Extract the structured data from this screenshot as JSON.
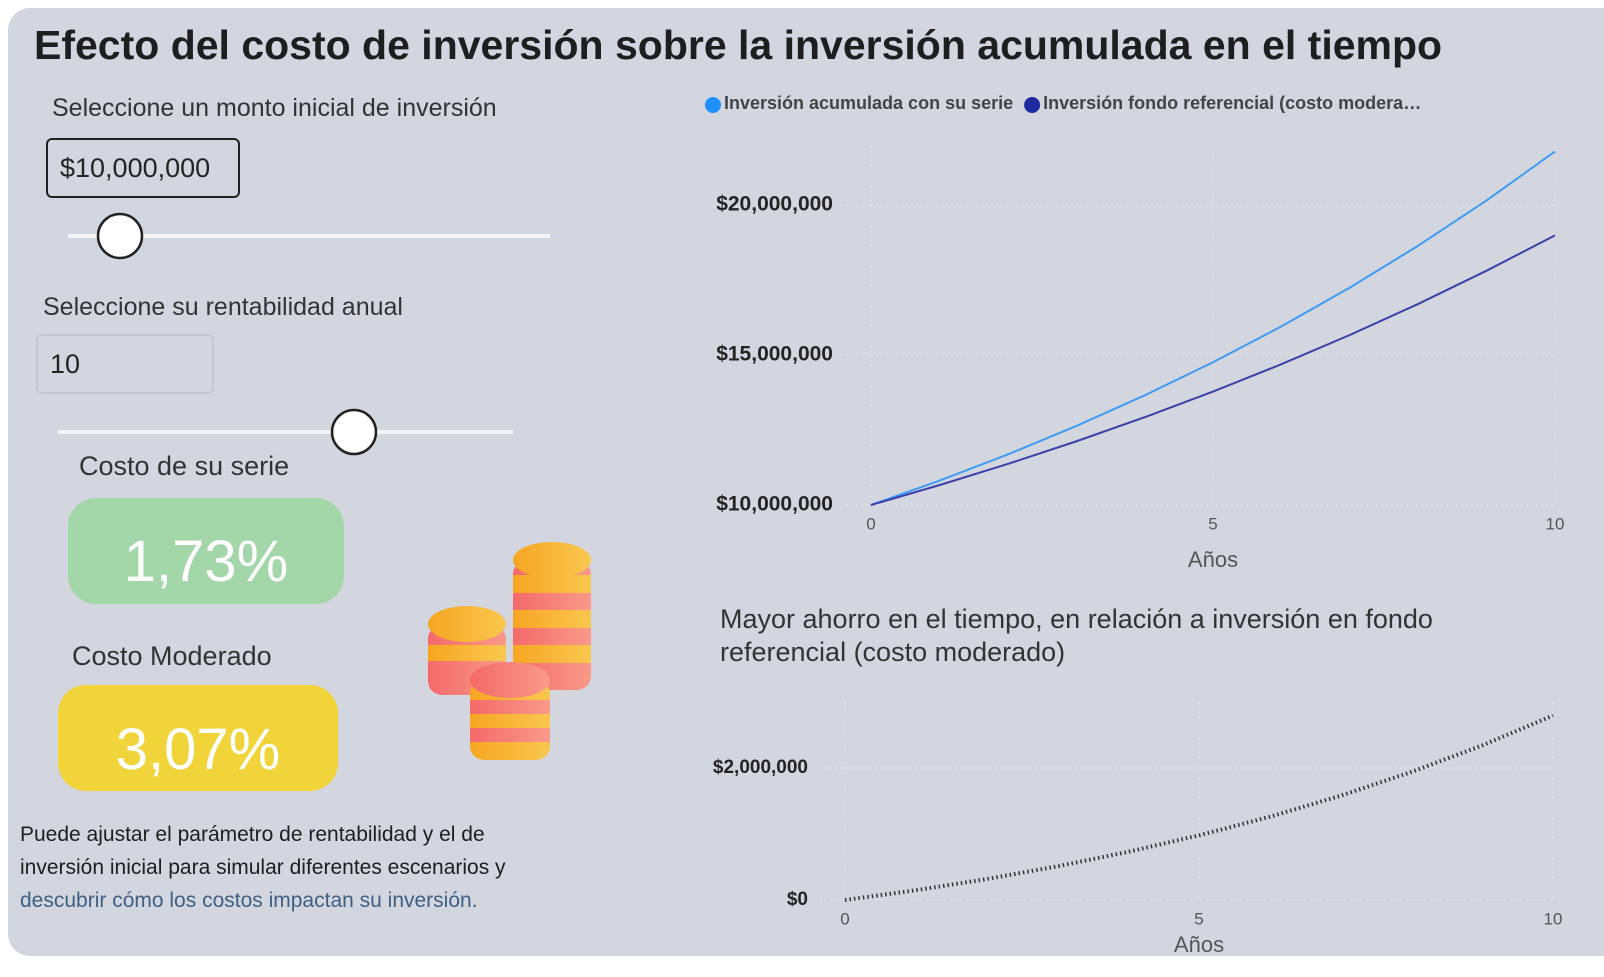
{
  "header": {
    "title": "Efecto del costo de inversión sobre la inversión acumulada en el tiempo"
  },
  "controls": {
    "amount_label": "Seleccione un monto inicial de inversión",
    "amount_value": "$10,000,000",
    "return_label": "Seleccione su rentabilidad anual",
    "return_value": "10",
    "series_cost_label": "Costo de su serie",
    "series_cost_value": "1,73%",
    "moderate_cost_label": "Costo Moderado",
    "moderate_cost_value": "3,07%",
    "note": [
      "Puede ajustar el parámetro de rentabilidad y el de",
      "inversión inicial para simular diferentes escenarios y",
      "descubrir cómo los costos impactan su inversión."
    ]
  },
  "chart_data": [
    {
      "type": "line",
      "x": [
        0,
        1,
        2,
        3,
        4,
        5,
        6,
        7,
        8,
        9,
        10
      ],
      "series": [
        {
          "name": "Inversión acumulada con su serie",
          "color": "#3d9cf5",
          "values": [
            10000000,
            10810000,
            11685000,
            12631000,
            13654000,
            14759000,
            15954000,
            17246000,
            18643000,
            20152000,
            21784000
          ]
        },
        {
          "name": "Inversión fondo referencial (costo modera…",
          "color": "#3b3fa8",
          "values": [
            10000000,
            10662000,
            11368000,
            12121000,
            12924000,
            13780000,
            14693000,
            15666000,
            16703000,
            17810000,
            18989000
          ]
        }
      ],
      "xlim": [
        0,
        10
      ],
      "xticks": [
        0,
        5,
        10
      ],
      "xlabel": "Años",
      "ylim": [
        10000000,
        22000000
      ],
      "yticks": [
        {
          "value": 10000000,
          "label": "$10,000,000"
        },
        {
          "value": 15000000,
          "label": "$15,000,000"
        },
        {
          "value": 20000000,
          "label": "$20,000,000"
        }
      ],
      "grid": true,
      "legend": "top"
    },
    {
      "type": "line",
      "title": "Mayor ahorro en el tiempo, en relación a inversión en fondo referencial (costo moderado)",
      "x": [
        0,
        1,
        2,
        3,
        4,
        5,
        6,
        7,
        8,
        9,
        10
      ],
      "values": [
        0,
        148000,
        317000,
        510000,
        730000,
        979000,
        1261000,
        1580000,
        1940000,
        2342000,
        2795000
      ],
      "color": "#333333",
      "line_style": "dotted",
      "xlim": [
        0,
        10
      ],
      "xticks": [
        0,
        5,
        10
      ],
      "xlabel": "Años",
      "ylim": [
        0,
        3000000
      ],
      "yticks": [
        {
          "value": 0,
          "label": "$0"
        },
        {
          "value": 2000000,
          "label": "$2,000,000"
        }
      ],
      "grid": true
    }
  ]
}
